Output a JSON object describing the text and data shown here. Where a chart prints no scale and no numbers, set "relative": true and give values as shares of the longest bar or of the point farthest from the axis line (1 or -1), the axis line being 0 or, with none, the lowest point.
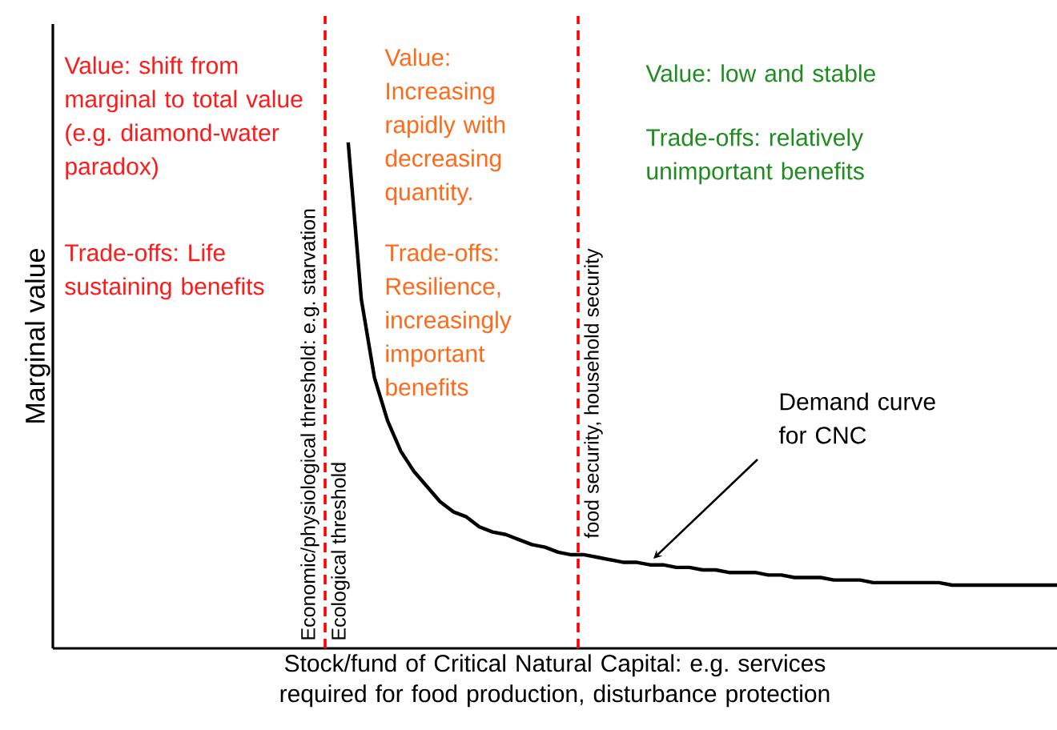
{
  "chart_data": {
    "type": "line",
    "relative": true,
    "marker": "none",
    "line_style": "solid",
    "xlabel": "Stock/fund of Critical Natural Capital: e.g. services required for food production, disturbance protection",
    "ylabel": "Marginal value",
    "categories": [
      null,
      null,
      null,
      null,
      null,
      null,
      null,
      null,
      null,
      null,
      null,
      null,
      null,
      null,
      null,
      null,
      null,
      null,
      null,
      null,
      null,
      null,
      null,
      null,
      null,
      null,
      null,
      null,
      null,
      null,
      null,
      null,
      null,
      null,
      null,
      null,
      null,
      null,
      null,
      null,
      null,
      null,
      null,
      null,
      null,
      null,
      null,
      null,
      null,
      null,
      null,
      null,
      null,
      null,
      null,
      null,
      null,
      null,
      null,
      null,
      null,
      null,
      null,
      null,
      null,
      null,
      null,
      null,
      null,
      null,
      null,
      null,
      null,
      null,
      null,
      null,
      null
    ],
    "series": [
      {
        "color": "#000000",
        "values": [
          null,
          null,
          null,
          null,
          null,
          null,
          null,
          null,
          null,
          null,
          null,
          null,
          null,
          null,
          null,
          null,
          null,
          null,
          null,
          null,
          null,
          null,
          1.0,
          0.69,
          0.535,
          0.45,
          0.39,
          0.35,
          0.32,
          0.29,
          0.27,
          0.26,
          0.24,
          0.23,
          0.225,
          0.215,
          0.205,
          0.2,
          0.19,
          0.185,
          0.185,
          0.18,
          0.175,
          0.17,
          0.17,
          0.165,
          0.165,
          0.16,
          0.16,
          0.155,
          0.155,
          0.15,
          0.15,
          0.15,
          0.145,
          0.145,
          0.14,
          0.14,
          0.14,
          0.135,
          0.135,
          0.135,
          0.13,
          0.13,
          0.13,
          0.13,
          0.13,
          0.13,
          0.125,
          0.125,
          0.125,
          0.125,
          0.125,
          0.125,
          0.125,
          0.125,
          0.125
        ]
      }
    ],
    "annotations": [
      "Value: shift from marginal to total value (e.g. diamond-water paradox)",
      "Trade-offs: Life sustaining benefits",
      "Value: Increasing rapidly with decreasing quantity.",
      "Trade-offs: Resilience, increasingly important benefits",
      "Value: low and stable",
      "Trade-offs: relatively unimportant benefits",
      "Economic/physiological threshold: e.g. starvation",
      "Ecological threshold",
      "food security, household security",
      "Demand curve for CNC"
    ]
  }
}
